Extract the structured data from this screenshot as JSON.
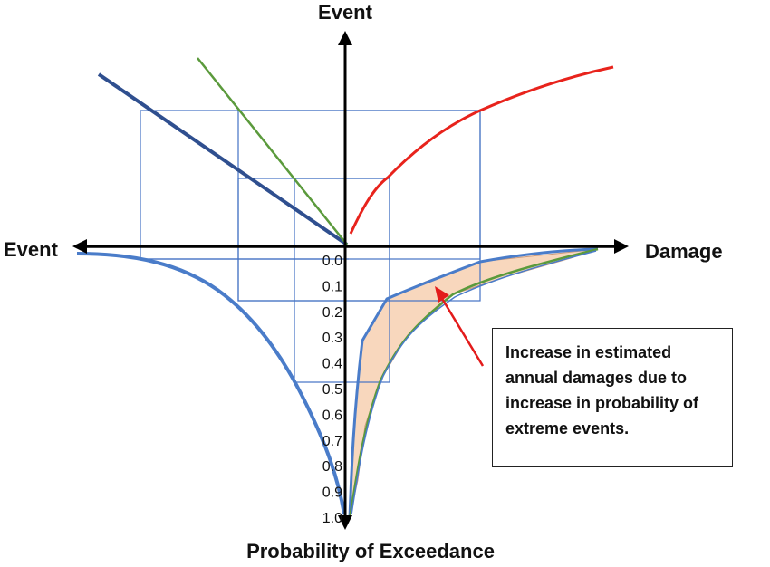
{
  "labels": {
    "top": "Event",
    "left": "Event",
    "right": "Damage",
    "bottom": "Probability of Exceedance"
  },
  "probability_ticks": [
    "0.0",
    "0.1",
    "0.2",
    "0.3",
    "0.4",
    "0.5",
    "0.6",
    "0.7",
    "0.8",
    "0.9",
    "1.0"
  ],
  "callout": {
    "lines": [
      "Increase in estimated",
      "annual damages due to",
      "increase in probability of",
      "extreme events."
    ]
  },
  "colors": {
    "axis": "#000000",
    "grid": "#4472c4",
    "dark_blue_line": "#2f4f8f",
    "green_line": "#5b9a3c",
    "red_curve": "#e8231c",
    "blue_curve": "#4a7cc9",
    "shaded_area": "#f8d7bd",
    "arrow": "#e31b1b"
  }
}
